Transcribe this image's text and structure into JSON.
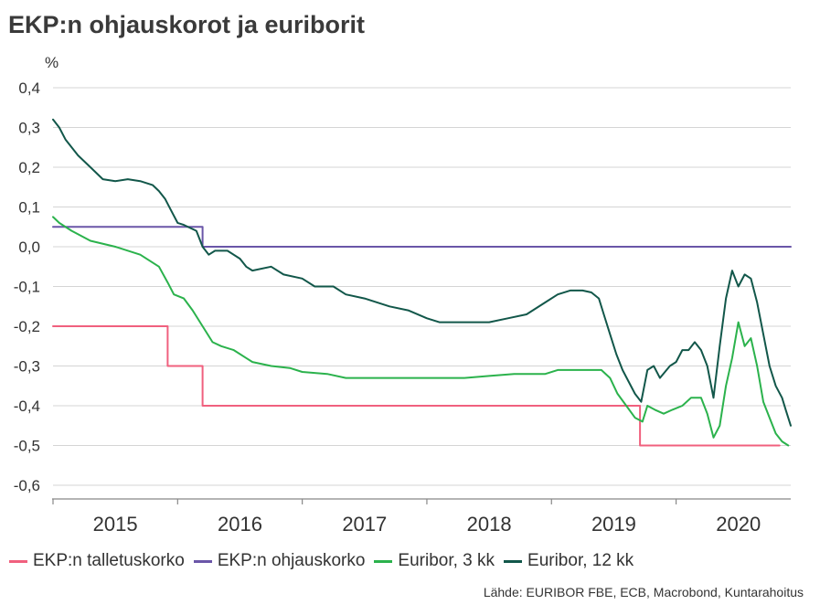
{
  "chart_data": {
    "type": "line",
    "title": "EKP:n ohjauskorot ja euriborit",
    "ylabel": "%",
    "xlabel": "",
    "ylim": [
      -0.6,
      0.4
    ],
    "xlim": [
      2015.0,
      2020.92
    ],
    "y_ticks": [
      0.4,
      0.3,
      0.2,
      0.1,
      0.0,
      -0.1,
      -0.2,
      -0.3,
      -0.4,
      -0.5,
      -0.6
    ],
    "y_tick_labels": [
      "0,4",
      "0,3",
      "0,2",
      "0,1",
      "0,0",
      "-0,1",
      "-0,2",
      "-0,3",
      "-0,4",
      "-0,5",
      "-0,6"
    ],
    "x_tick_labels": [
      "2015",
      "2016",
      "2017",
      "2018",
      "2019",
      "2020"
    ],
    "grid": "horizontal",
    "legend_position": "bottom",
    "source": "Lähde: EURIBOR FBE, ECB, Macrobond, Kuntarahoitus",
    "series": [
      {
        "name": "EKP:n talletuskorko",
        "color": "#f0607e",
        "points": [
          [
            2015.0,
            -0.2
          ],
          [
            2015.92,
            -0.2
          ],
          [
            2015.92,
            -0.3
          ],
          [
            2016.2,
            -0.3
          ],
          [
            2016.2,
            -0.4
          ],
          [
            2019.71,
            -0.4
          ],
          [
            2019.71,
            -0.5
          ],
          [
            2020.83,
            -0.5
          ]
        ]
      },
      {
        "name": "EKP:n ohjauskorko",
        "color": "#6a56a8",
        "points": [
          [
            2015.0,
            0.05
          ],
          [
            2016.2,
            0.05
          ],
          [
            2016.2,
            0.0
          ],
          [
            2020.92,
            0.0
          ]
        ]
      },
      {
        "name": "Euribor, 3 kk",
        "color": "#2bb24c",
        "points": [
          [
            2015.0,
            0.075
          ],
          [
            2015.05,
            0.06
          ],
          [
            2015.15,
            0.04
          ],
          [
            2015.3,
            0.015
          ],
          [
            2015.5,
            0.0
          ],
          [
            2015.7,
            -0.02
          ],
          [
            2015.85,
            -0.05
          ],
          [
            2015.92,
            -0.09
          ],
          [
            2015.97,
            -0.12
          ],
          [
            2016.05,
            -0.13
          ],
          [
            2016.12,
            -0.16
          ],
          [
            2016.2,
            -0.2
          ],
          [
            2016.28,
            -0.24
          ],
          [
            2016.35,
            -0.25
          ],
          [
            2016.45,
            -0.26
          ],
          [
            2016.55,
            -0.28
          ],
          [
            2016.6,
            -0.29
          ],
          [
            2016.75,
            -0.3
          ],
          [
            2016.9,
            -0.305
          ],
          [
            2017.0,
            -0.315
          ],
          [
            2017.2,
            -0.32
          ],
          [
            2017.35,
            -0.33
          ],
          [
            2017.5,
            -0.33
          ],
          [
            2017.8,
            -0.33
          ],
          [
            2018.0,
            -0.33
          ],
          [
            2018.3,
            -0.33
          ],
          [
            2018.5,
            -0.325
          ],
          [
            2018.7,
            -0.32
          ],
          [
            2018.95,
            -0.32
          ],
          [
            2019.05,
            -0.31
          ],
          [
            2019.2,
            -0.31
          ],
          [
            2019.4,
            -0.31
          ],
          [
            2019.47,
            -0.33
          ],
          [
            2019.53,
            -0.37
          ],
          [
            2019.6,
            -0.4
          ],
          [
            2019.67,
            -0.43
          ],
          [
            2019.73,
            -0.44
          ],
          [
            2019.77,
            -0.4
          ],
          [
            2019.83,
            -0.41
          ],
          [
            2019.9,
            -0.42
          ],
          [
            2019.97,
            -0.41
          ],
          [
            2020.05,
            -0.4
          ],
          [
            2020.12,
            -0.38
          ],
          [
            2020.2,
            -0.38
          ],
          [
            2020.25,
            -0.42
          ],
          [
            2020.3,
            -0.48
          ],
          [
            2020.35,
            -0.45
          ],
          [
            2020.4,
            -0.35
          ],
          [
            2020.45,
            -0.28
          ],
          [
            2020.5,
            -0.19
          ],
          [
            2020.55,
            -0.25
          ],
          [
            2020.6,
            -0.23
          ],
          [
            2020.65,
            -0.3
          ],
          [
            2020.7,
            -0.39
          ],
          [
            2020.75,
            -0.43
          ],
          [
            2020.8,
            -0.47
          ],
          [
            2020.85,
            -0.49
          ],
          [
            2020.9,
            -0.5
          ]
        ]
      },
      {
        "name": "Euribor, 12 kk",
        "color": "#12574a",
        "points": [
          [
            2015.0,
            0.32
          ],
          [
            2015.05,
            0.3
          ],
          [
            2015.1,
            0.27
          ],
          [
            2015.2,
            0.23
          ],
          [
            2015.3,
            0.2
          ],
          [
            2015.4,
            0.17
          ],
          [
            2015.5,
            0.165
          ],
          [
            2015.6,
            0.17
          ],
          [
            2015.7,
            0.165
          ],
          [
            2015.8,
            0.155
          ],
          [
            2015.85,
            0.14
          ],
          [
            2015.9,
            0.12
          ],
          [
            2015.95,
            0.09
          ],
          [
            2016.0,
            0.06
          ],
          [
            2016.05,
            0.055
          ],
          [
            2016.15,
            0.04
          ],
          [
            2016.2,
            0.0
          ],
          [
            2016.25,
            -0.02
          ],
          [
            2016.3,
            -0.01
          ],
          [
            2016.4,
            -0.01
          ],
          [
            2016.5,
            -0.03
          ],
          [
            2016.55,
            -0.05
          ],
          [
            2016.6,
            -0.06
          ],
          [
            2016.75,
            -0.05
          ],
          [
            2016.85,
            -0.07
          ],
          [
            2017.0,
            -0.08
          ],
          [
            2017.1,
            -0.1
          ],
          [
            2017.25,
            -0.1
          ],
          [
            2017.35,
            -0.12
          ],
          [
            2017.5,
            -0.13
          ],
          [
            2017.7,
            -0.15
          ],
          [
            2017.85,
            -0.16
          ],
          [
            2018.0,
            -0.18
          ],
          [
            2018.1,
            -0.19
          ],
          [
            2018.25,
            -0.19
          ],
          [
            2018.35,
            -0.19
          ],
          [
            2018.5,
            -0.19
          ],
          [
            2018.65,
            -0.18
          ],
          [
            2018.8,
            -0.17
          ],
          [
            2018.95,
            -0.14
          ],
          [
            2019.05,
            -0.12
          ],
          [
            2019.15,
            -0.11
          ],
          [
            2019.25,
            -0.11
          ],
          [
            2019.32,
            -0.115
          ],
          [
            2019.38,
            -0.13
          ],
          [
            2019.42,
            -0.17
          ],
          [
            2019.47,
            -0.22
          ],
          [
            2019.52,
            -0.27
          ],
          [
            2019.57,
            -0.31
          ],
          [
            2019.62,
            -0.34
          ],
          [
            2019.67,
            -0.37
          ],
          [
            2019.72,
            -0.39
          ],
          [
            2019.77,
            -0.31
          ],
          [
            2019.82,
            -0.3
          ],
          [
            2019.87,
            -0.33
          ],
          [
            2019.95,
            -0.3
          ],
          [
            2020.0,
            -0.29
          ],
          [
            2020.05,
            -0.26
          ],
          [
            2020.1,
            -0.26
          ],
          [
            2020.15,
            -0.24
          ],
          [
            2020.2,
            -0.26
          ],
          [
            2020.25,
            -0.3
          ],
          [
            2020.3,
            -0.38
          ],
          [
            2020.35,
            -0.25
          ],
          [
            2020.4,
            -0.13
          ],
          [
            2020.45,
            -0.06
          ],
          [
            2020.5,
            -0.1
          ],
          [
            2020.55,
            -0.07
          ],
          [
            2020.6,
            -0.08
          ],
          [
            2020.65,
            -0.14
          ],
          [
            2020.7,
            -0.22
          ],
          [
            2020.75,
            -0.3
          ],
          [
            2020.8,
            -0.35
          ],
          [
            2020.85,
            -0.38
          ],
          [
            2020.88,
            -0.41
          ],
          [
            2020.92,
            -0.45
          ]
        ]
      }
    ]
  }
}
